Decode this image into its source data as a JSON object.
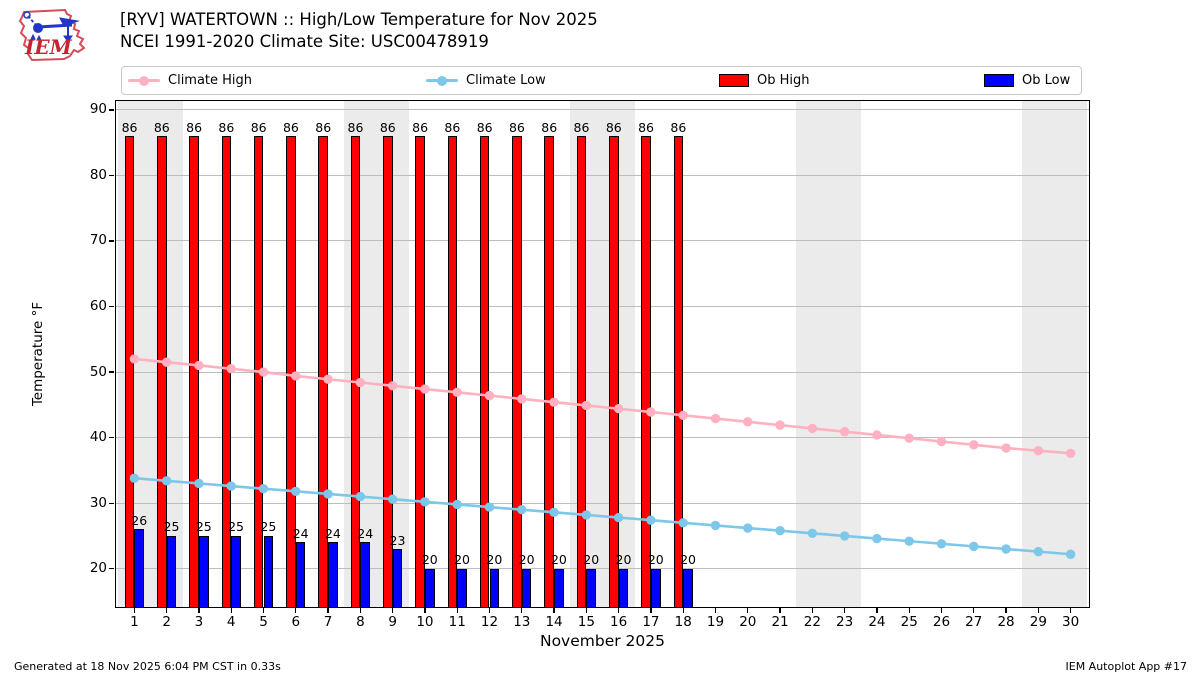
{
  "header": {
    "title_line1": "[RYV] WATERTOWN :: High/Low Temperature for Nov 2025",
    "title_line2": "NCEI 1991-2020 Climate Site: USC00478919",
    "logo_text": "IEM"
  },
  "legend": {
    "items": [
      {
        "label": "Climate High",
        "type": "line",
        "color": "#ffb0c1"
      },
      {
        "label": "Climate Low",
        "type": "line",
        "color": "#7dc8e8"
      },
      {
        "label": "Ob High",
        "type": "patch",
        "color": "#ff0000"
      },
      {
        "label": "Ob Low",
        "type": "patch",
        "color": "#0000ff"
      }
    ]
  },
  "footer": {
    "left": "Generated at 18 Nov 2025 6:04 PM CST in 0.33s",
    "right": "IEM Autoplot App #17"
  },
  "chart_data": {
    "type": "bar",
    "title": "[RYV] WATERTOWN :: High/Low Temperature for Nov 2025",
    "subtitle": "NCEI 1991-2020 Climate Site: USC00478919",
    "xlabel": "November 2025",
    "ylabel": "Temperature °F",
    "x": [
      1,
      2,
      3,
      4,
      5,
      6,
      7,
      8,
      9,
      10,
      11,
      12,
      13,
      14,
      15,
      16,
      17,
      18,
      19,
      20,
      21,
      22,
      23,
      24,
      25,
      26,
      27,
      28,
      29,
      30
    ],
    "ylim": [
      14,
      91.5
    ],
    "yticks": [
      20,
      30,
      40,
      50,
      60,
      70,
      80,
      90
    ],
    "grid": true,
    "legend_position": "top",
    "weekend_shading_days": [
      [
        0.5,
        2.5
      ],
      [
        7.5,
        9.5
      ],
      [
        14.5,
        16.5
      ],
      [
        21.5,
        23.5
      ],
      [
        28.5,
        30.5
      ]
    ],
    "series": [
      {
        "name": "Ob High",
        "type": "bar",
        "color": "#ff0000",
        "values": [
          86,
          86,
          86,
          86,
          86,
          86,
          86,
          86,
          86,
          86,
          86,
          86,
          86,
          86,
          86,
          86,
          86,
          86,
          null,
          null,
          null,
          null,
          null,
          null,
          null,
          null,
          null,
          null,
          null,
          null
        ]
      },
      {
        "name": "Ob Low",
        "type": "bar",
        "color": "#0000ff",
        "values": [
          26,
          25,
          25,
          25,
          25,
          24,
          24,
          24,
          23,
          20,
          20,
          20,
          20,
          20,
          20,
          20,
          20,
          20,
          null,
          null,
          null,
          null,
          null,
          null,
          null,
          null,
          null,
          null,
          null,
          null
        ]
      },
      {
        "name": "Climate High",
        "type": "line",
        "color": "#ffb0c1",
        "values": [
          52.0,
          51.5,
          51.0,
          50.5,
          50.0,
          49.4,
          48.9,
          48.4,
          47.9,
          47.4,
          46.9,
          46.4,
          45.9,
          45.4,
          44.9,
          44.4,
          43.9,
          43.4,
          42.9,
          42.4,
          41.9,
          41.4,
          40.9,
          40.4,
          39.9,
          39.4,
          38.9,
          38.4,
          38.0,
          37.6
        ]
      },
      {
        "name": "Climate Low",
        "type": "line",
        "color": "#7dc8e8",
        "values": [
          33.8,
          33.4,
          33.0,
          32.6,
          32.2,
          31.8,
          31.4,
          31.0,
          30.6,
          30.2,
          29.8,
          29.4,
          29.0,
          28.6,
          28.2,
          27.8,
          27.4,
          27.0,
          26.6,
          26.2,
          25.8,
          25.4,
          25.0,
          24.6,
          24.2,
          23.8,
          23.4,
          23.0,
          22.6,
          22.2
        ]
      }
    ],
    "bar_value_labels_shown": true
  }
}
